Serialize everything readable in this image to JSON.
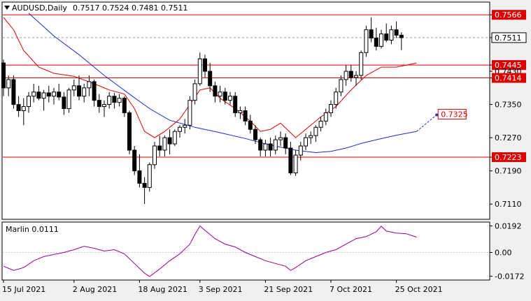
{
  "header": {
    "symbol_label": "AUDUSD,Daily",
    "ohlc_text": "0.7517 0.7524 0.7481 0.7511"
  },
  "indicator": {
    "label": "Marlin 0.0111"
  },
  "colors": {
    "background": "#f0f0f0",
    "candle": "#000000",
    "ma_fast": "#dd0000",
    "ma_slow": "#1a2cd0",
    "level_line": "#dd0000",
    "level_badge": "#dd0000",
    "marlin_line": "#990099",
    "grid": "#c8c8c8",
    "forecast_line": "#2030d0",
    "forecast_label": "#dd0000"
  },
  "chart_data": [
    {
      "type": "candlestick",
      "ylim": [
        0.7075,
        0.7595
      ],
      "y_ticks": [
        "0.7566",
        "0.7511",
        "0.7445",
        "0.7430",
        "0.7414",
        "0.7350",
        "0.7270",
        "0.7223",
        "0.7190",
        "0.7110"
      ],
      "x_tick_labels": [
        {
          "index": 0,
          "label": "15 Jul 2021"
        },
        {
          "index": 14,
          "label": "2 Aug 2021"
        },
        {
          "index": 27,
          "label": "18 Aug 2021"
        },
        {
          "index": 39,
          "label": "3 Sep 2021"
        },
        {
          "index": 52,
          "label": "21 Sep 2021"
        },
        {
          "index": 65,
          "label": "7 Oct 2021"
        },
        {
          "index": 78,
          "label": "25 Oct 2021"
        }
      ],
      "horizontal_levels": [
        0.7566,
        0.7445,
        0.7414,
        0.7223
      ],
      "current_price": 0.7511,
      "forecast": {
        "from_index": 82,
        "from_value": 0.7285,
        "to_index": 86,
        "to_value": 0.7325,
        "label": "0.7325"
      },
      "candles": [
        [
          0.745,
          0.7458,
          0.737,
          0.739
        ],
        [
          0.739,
          0.742,
          0.737,
          0.741
        ],
        [
          0.741,
          0.742,
          0.734,
          0.735
        ],
        [
          0.735,
          0.737,
          0.732,
          0.7335
        ],
        [
          0.7335,
          0.7365,
          0.73,
          0.7345
        ],
        [
          0.7345,
          0.738,
          0.733,
          0.737
        ],
        [
          0.737,
          0.74,
          0.7355,
          0.738
        ],
        [
          0.738,
          0.7395,
          0.736,
          0.7365
        ],
        [
          0.7365,
          0.7385,
          0.7335,
          0.7378
        ],
        [
          0.7378,
          0.7395,
          0.7355,
          0.737
        ],
        [
          0.737,
          0.739,
          0.735,
          0.738
        ],
        [
          0.738,
          0.74,
          0.736,
          0.7368
        ],
        [
          0.7368,
          0.738,
          0.7325,
          0.734
        ],
        [
          0.734,
          0.739,
          0.733,
          0.7385
        ],
        [
          0.7385,
          0.741,
          0.737,
          0.7395
        ],
        [
          0.7395,
          0.742,
          0.736,
          0.737
        ],
        [
          0.737,
          0.74,
          0.7355,
          0.739
        ],
        [
          0.739,
          0.742,
          0.737,
          0.7405
        ],
        [
          0.7405,
          0.741,
          0.7345,
          0.736
        ],
        [
          0.736,
          0.7375,
          0.733,
          0.7345
        ],
        [
          0.7345,
          0.736,
          0.732,
          0.735
        ],
        [
          0.735,
          0.738,
          0.734,
          0.737
        ],
        [
          0.737,
          0.7378,
          0.734,
          0.7355
        ],
        [
          0.7355,
          0.7375,
          0.7345,
          0.7365
        ],
        [
          0.7365,
          0.737,
          0.732,
          0.733
        ],
        [
          0.733,
          0.7335,
          0.723,
          0.724
        ],
        [
          0.724,
          0.725,
          0.718,
          0.719
        ],
        [
          0.719,
          0.723,
          0.715,
          0.716
        ],
        [
          0.716,
          0.7175,
          0.711,
          0.715
        ],
        [
          0.715,
          0.721,
          0.714,
          0.7205
        ],
        [
          0.7205,
          0.726,
          0.7195,
          0.725
        ],
        [
          0.725,
          0.7275,
          0.7225,
          0.724
        ],
        [
          0.724,
          0.7275,
          0.7225,
          0.727
        ],
        [
          0.727,
          0.729,
          0.723,
          0.7255
        ],
        [
          0.7255,
          0.729,
          0.725,
          0.7285
        ],
        [
          0.7285,
          0.73,
          0.727,
          0.7295
        ],
        [
          0.7295,
          0.7315,
          0.728,
          0.73
        ],
        [
          0.73,
          0.737,
          0.729,
          0.736
        ],
        [
          0.736,
          0.741,
          0.735,
          0.74
        ],
        [
          0.74,
          0.7475,
          0.7395,
          0.746
        ],
        [
          0.746,
          0.747,
          0.7415,
          0.743
        ],
        [
          0.743,
          0.745,
          0.738,
          0.7395
        ],
        [
          0.7395,
          0.7405,
          0.7355,
          0.737
        ],
        [
          0.737,
          0.7395,
          0.7355,
          0.738
        ],
        [
          0.738,
          0.739,
          0.735,
          0.736
        ],
        [
          0.736,
          0.738,
          0.735,
          0.737
        ],
        [
          0.737,
          0.738,
          0.732,
          0.733
        ],
        [
          0.733,
          0.7345,
          0.7315,
          0.7335
        ],
        [
          0.7335,
          0.7345,
          0.73,
          0.731
        ],
        [
          0.731,
          0.7325,
          0.728,
          0.729
        ],
        [
          0.729,
          0.73,
          0.7255,
          0.7265
        ],
        [
          0.7265,
          0.727,
          0.7225,
          0.724
        ],
        [
          0.724,
          0.7265,
          0.7225,
          0.7255
        ],
        [
          0.7255,
          0.727,
          0.7225,
          0.724
        ],
        [
          0.724,
          0.7275,
          0.723,
          0.7265
        ],
        [
          0.7265,
          0.7285,
          0.725,
          0.727
        ],
        [
          0.727,
          0.728,
          0.723,
          0.7245
        ],
        [
          0.7245,
          0.726,
          0.718,
          0.7185
        ],
        [
          0.7185,
          0.724,
          0.7178,
          0.7228
        ],
        [
          0.7228,
          0.726,
          0.7215,
          0.725
        ],
        [
          0.725,
          0.728,
          0.724,
          0.727
        ],
        [
          0.727,
          0.7285,
          0.7255,
          0.7275
        ],
        [
          0.7275,
          0.73,
          0.726,
          0.7295
        ],
        [
          0.7295,
          0.732,
          0.7285,
          0.731
        ],
        [
          0.731,
          0.734,
          0.73,
          0.733
        ],
        [
          0.733,
          0.736,
          0.732,
          0.735
        ],
        [
          0.735,
          0.739,
          0.734,
          0.738
        ],
        [
          0.738,
          0.742,
          0.737,
          0.741
        ],
        [
          0.741,
          0.7445,
          0.7395,
          0.743
        ],
        [
          0.743,
          0.7445,
          0.7405,
          0.7415
        ],
        [
          0.7415,
          0.743,
          0.7395,
          0.742
        ],
        [
          0.742,
          0.748,
          0.741,
          0.7475
        ],
        [
          0.7475,
          0.754,
          0.7465,
          0.753
        ],
        [
          0.753,
          0.756,
          0.75,
          0.751
        ],
        [
          0.751,
          0.7535,
          0.748,
          0.749
        ],
        [
          0.749,
          0.753,
          0.7485,
          0.752
        ],
        [
          0.752,
          0.7545,
          0.75,
          0.7505
        ],
        [
          0.7505,
          0.754,
          0.7495,
          0.753
        ],
        [
          0.753,
          0.755,
          0.751,
          0.7517
        ],
        [
          0.7517,
          0.7524,
          0.7481,
          0.7511
        ]
      ],
      "ma_fast": [
        [
          0,
          0.756
        ],
        [
          2,
          0.753
        ],
        [
          4,
          0.748
        ],
        [
          7,
          0.744
        ],
        [
          10,
          0.7425
        ],
        [
          14,
          0.7418
        ],
        [
          18,
          0.74
        ],
        [
          21,
          0.7385
        ],
        [
          24,
          0.7375
        ],
        [
          26,
          0.734
        ],
        [
          28,
          0.7285
        ],
        [
          30,
          0.727
        ],
        [
          32,
          0.7285
        ],
        [
          35,
          0.7315
        ],
        [
          37,
          0.735
        ],
        [
          39,
          0.7385
        ],
        [
          41,
          0.739
        ],
        [
          43,
          0.7365
        ],
        [
          46,
          0.734
        ],
        [
          49,
          0.731
        ],
        [
          51,
          0.7285
        ],
        [
          53,
          0.729
        ],
        [
          55,
          0.7305
        ],
        [
          58,
          0.727
        ],
        [
          60,
          0.729
        ],
        [
          63,
          0.732
        ],
        [
          66,
          0.7345
        ],
        [
          69,
          0.7385
        ],
        [
          72,
          0.742
        ],
        [
          75,
          0.744
        ],
        [
          78,
          0.744
        ],
        [
          82,
          0.745
        ]
      ],
      "ma_slow": [
        [
          5,
          0.757
        ],
        [
          10,
          0.7515
        ],
        [
          15,
          0.747
        ],
        [
          20,
          0.742
        ],
        [
          25,
          0.7375
        ],
        [
          29,
          0.734
        ],
        [
          33,
          0.7312
        ],
        [
          38,
          0.7295
        ],
        [
          43,
          0.7282
        ],
        [
          48,
          0.7268
        ],
        [
          53,
          0.7252
        ],
        [
          58,
          0.724
        ],
        [
          62,
          0.7234
        ],
        [
          65,
          0.7237
        ],
        [
          68,
          0.7245
        ],
        [
          71,
          0.7256
        ],
        [
          74,
          0.7265
        ],
        [
          78,
          0.7276
        ],
        [
          82,
          0.7285
        ]
      ],
      "marlin": [
        [
          0,
          -0.01
        ],
        [
          2,
          -0.013
        ],
        [
          4,
          -0.011
        ],
        [
          6,
          -0.006
        ],
        [
          8,
          -0.003
        ],
        [
          10,
          -0.0015
        ],
        [
          12,
          0.0
        ],
        [
          14,
          0.002
        ],
        [
          16,
          0.0045
        ],
        [
          18,
          0.003
        ],
        [
          20,
          0.001
        ],
        [
          22,
          0.002
        ],
        [
          24,
          -0.001
        ],
        [
          26,
          -0.008
        ],
        [
          28,
          -0.015
        ],
        [
          29,
          -0.0175
        ],
        [
          31,
          -0.012
        ],
        [
          33,
          -0.006
        ],
        [
          35,
          -0.001
        ],
        [
          37,
          0.006
        ],
        [
          38,
          0.013
        ],
        [
          39,
          0.0192
        ],
        [
          40,
          0.016
        ],
        [
          42,
          0.01
        ],
        [
          44,
          0.006
        ],
        [
          46,
          0.004
        ],
        [
          48,
          0.0
        ],
        [
          50,
          -0.003
        ],
        [
          52,
          -0.006
        ],
        [
          54,
          -0.008
        ],
        [
          56,
          -0.01
        ],
        [
          57,
          -0.013
        ],
        [
          58,
          -0.011
        ],
        [
          60,
          -0.006
        ],
        [
          62,
          -0.003
        ],
        [
          64,
          0.0
        ],
        [
          66,
          0.002
        ],
        [
          68,
          0.006
        ],
        [
          70,
          0.01
        ],
        [
          72,
          0.0115
        ],
        [
          74,
          0.015
        ],
        [
          75,
          0.019
        ],
        [
          76,
          0.0155
        ],
        [
          78,
          0.014
        ],
        [
          80,
          0.0135
        ],
        [
          82,
          0.0111
        ]
      ],
      "marlin_ylim": [
        -0.0195,
        0.0215
      ],
      "marlin_ticks": [
        "0.0192",
        "0.00",
        "-0.0172"
      ]
    }
  ]
}
